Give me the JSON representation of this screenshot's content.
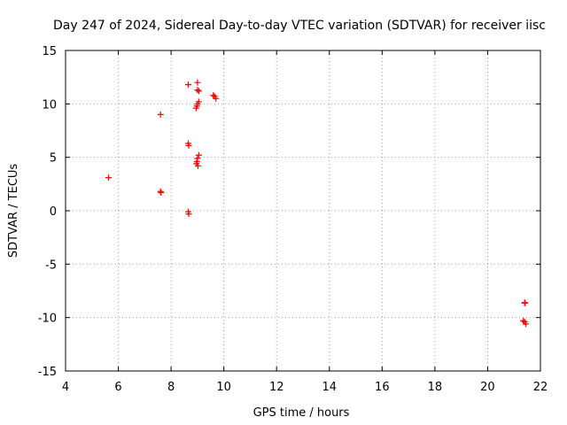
{
  "chart_data": {
    "type": "scatter",
    "title": "Day 247 of 2024, Sidereal Day-to-day VTEC variation (SDTVAR) for receiver iisc",
    "xlabel": "GPS time / hours",
    "ylabel": "SDTVAR / TECUs",
    "xlim": [
      4,
      22
    ],
    "ylim": [
      -15,
      15
    ],
    "xticks": [
      4,
      6,
      8,
      10,
      12,
      14,
      16,
      18,
      20,
      22
    ],
    "yticks": [
      -15,
      -10,
      -5,
      0,
      5,
      10,
      15
    ],
    "grid": true,
    "marker": "plus",
    "series": [
      {
        "name": "SDTVAR",
        "color": "#ff0000",
        "points": [
          [
            5.63,
            3.1
          ],
          [
            7.6,
            9.0
          ],
          [
            7.6,
            1.8
          ],
          [
            7.62,
            1.7
          ],
          [
            8.65,
            11.8
          ],
          [
            8.65,
            6.3
          ],
          [
            8.67,
            6.1
          ],
          [
            8.65,
            -0.1
          ],
          [
            8.67,
            -0.3
          ],
          [
            9.0,
            12.0
          ],
          [
            9.0,
            11.3
          ],
          [
            9.05,
            11.2
          ],
          [
            9.05,
            10.2
          ],
          [
            9.0,
            10.0
          ],
          [
            8.98,
            9.8
          ],
          [
            8.95,
            9.6
          ],
          [
            9.05,
            5.2
          ],
          [
            9.0,
            4.9
          ],
          [
            8.98,
            4.6
          ],
          [
            8.96,
            4.4
          ],
          [
            9.02,
            4.2
          ],
          [
            9.6,
            10.8
          ],
          [
            9.65,
            10.7
          ],
          [
            9.7,
            10.5
          ],
          [
            21.4,
            -8.6
          ],
          [
            21.42,
            -8.65
          ],
          [
            21.35,
            -10.3
          ],
          [
            21.4,
            -10.4
          ],
          [
            21.45,
            -10.6
          ]
        ]
      }
    ]
  }
}
